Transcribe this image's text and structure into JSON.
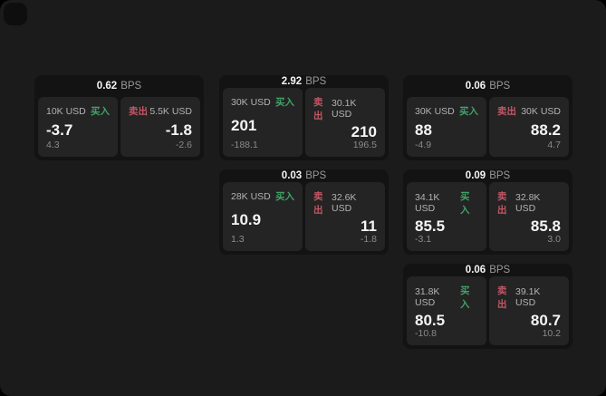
{
  "page": {
    "background": "#000000",
    "surface": "#1b1b1b"
  },
  "labels": {
    "buy": "买入",
    "sell": "卖出",
    "bps_suffix": "BPS"
  },
  "colors": {
    "buy_green": "#42a168",
    "sell_red": "#c25664",
    "value_white": "#f5f5f5",
    "label_gray": "#b3b3b3",
    "muted_gray": "#8a8a8a",
    "card_bg": "#131313",
    "tile_bg": "#242424"
  },
  "cards": [
    {
      "bps": "0.62",
      "row": 0,
      "col": 0,
      "buy": {
        "amount": "10K USD",
        "value": "-3.7",
        "sub": "4.3"
      },
      "sell": {
        "amount": "5.5K USD",
        "value": "-1.8",
        "sub": "-2.6"
      }
    },
    {
      "bps": "2.92",
      "row": 0,
      "col": 1,
      "buy": {
        "amount": "30K USD",
        "value": "201",
        "sub": "-188.1"
      },
      "sell": {
        "amount": "30.1K USD",
        "value": "210",
        "sub": "196.5"
      }
    },
    {
      "bps": "0.06",
      "row": 0,
      "col": 2,
      "buy": {
        "amount": "30K USD",
        "value": "88",
        "sub": "-4.9"
      },
      "sell": {
        "amount": "30K USD",
        "value": "88.2",
        "sub": "4.7"
      }
    },
    {
      "bps": "0.03",
      "row": 1,
      "col": 1,
      "buy": {
        "amount": "28K USD",
        "value": "10.9",
        "sub": "1.3"
      },
      "sell": {
        "amount": "32.6K USD",
        "value": "11",
        "sub": "-1.8"
      }
    },
    {
      "bps": "0.09",
      "row": 1,
      "col": 2,
      "buy": {
        "amount": "34.1K USD",
        "value": "85.5",
        "sub": "-3.1"
      },
      "sell": {
        "amount": "32.8K USD",
        "value": "85.8",
        "sub": "3.0"
      }
    },
    {
      "bps": "0.06",
      "row": 2,
      "col": 2,
      "buy": {
        "amount": "31.8K USD",
        "value": "80.5",
        "sub": "-10.8"
      },
      "sell": {
        "amount": "39.1K USD",
        "value": "80.7",
        "sub": "10.2"
      }
    }
  ]
}
